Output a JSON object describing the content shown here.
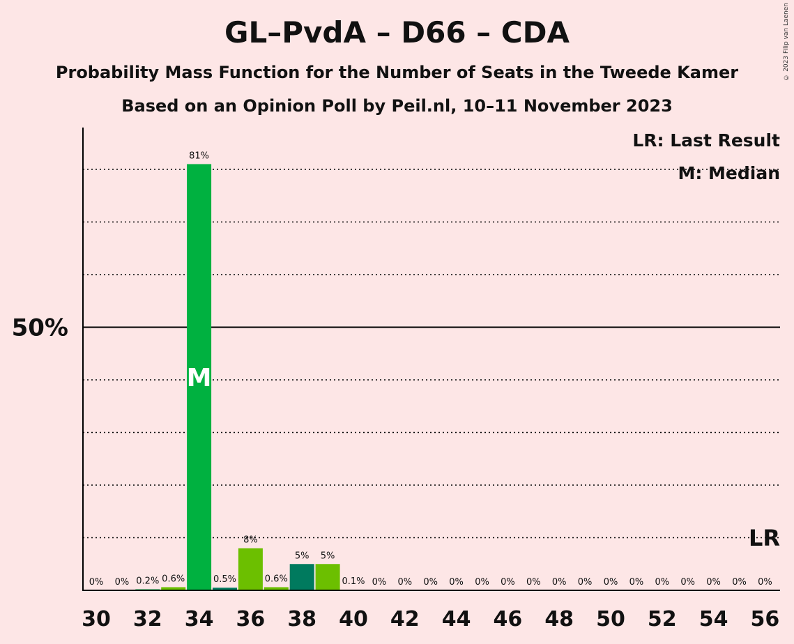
{
  "chart_data": {
    "type": "bar",
    "title": "GL–PvdA – D66 – CDA",
    "subtitle_1": "Probability Mass Function for the Number of Seats in the Tweede Kamer",
    "subtitle_2": "Based on an Opinion Poll by Peil.nl, 10–11 November 2023",
    "copyright": "© 2023 Filip van Laenen",
    "x": [
      30,
      31,
      32,
      33,
      34,
      35,
      36,
      37,
      38,
      39,
      40,
      41,
      42,
      43,
      44,
      45,
      46,
      47,
      48,
      49,
      50,
      51,
      52,
      53,
      54,
      55,
      56
    ],
    "values": [
      0,
      0,
      0.2,
      0.6,
      81,
      0.5,
      8,
      0.6,
      5,
      5,
      0.1,
      0,
      0,
      0,
      0,
      0,
      0,
      0,
      0,
      0,
      0,
      0,
      0,
      0,
      0,
      0,
      0
    ],
    "labels": [
      "0%",
      "0%",
      "0.2%",
      "0.6%",
      "81%",
      "0.5%",
      "8%",
      "0.6%",
      "5%",
      "5%",
      "0.1%",
      "0%",
      "0%",
      "0%",
      "0%",
      "0%",
      "0%",
      "0%",
      "0%",
      "0%",
      "0%",
      "0%",
      "0%",
      "0%",
      "0%",
      "0%",
      "0%"
    ],
    "bar_colors": [
      "#00b140",
      "#00b140",
      "#00b140",
      "#6cbf00",
      "#00b140",
      "#007a5e",
      "#6cbf00",
      "#6cbf00",
      "#007a5e",
      "#6cbf00",
      "#6cbf00",
      "#00b140",
      "#00b140",
      "#00b140",
      "#00b140",
      "#00b140",
      "#00b140",
      "#00b140",
      "#00b140",
      "#00b140",
      "#00b140",
      "#00b140",
      "#00b140",
      "#00b140",
      "#00b140",
      "#00b140",
      "#00b140"
    ],
    "x_tick_labels": [
      "30",
      "32",
      "34",
      "36",
      "38",
      "40",
      "42",
      "44",
      "46",
      "48",
      "50",
      "52",
      "54",
      "56"
    ],
    "x_tick_values": [
      30,
      32,
      34,
      36,
      38,
      40,
      42,
      44,
      46,
      48,
      50,
      52,
      54,
      56
    ],
    "y_tick_label": "50%",
    "y_tick_value": 50,
    "ylim": [
      0,
      88
    ],
    "dotted_gridlines": [
      10,
      20,
      30,
      40,
      60,
      70,
      80
    ],
    "median_seat": 34,
    "median_marker": "M",
    "last_result_seat": 56,
    "last_result_marker": "LR",
    "legend": [
      "LR: Last Result",
      "M: Median"
    ],
    "legend_position": "top-right"
  }
}
